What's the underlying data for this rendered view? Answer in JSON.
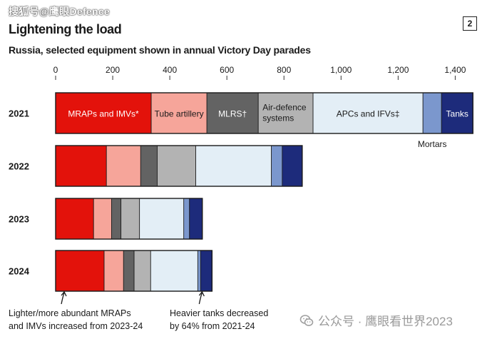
{
  "header": {
    "source_watermark": "搜狐号@鹰眼Defence",
    "title": "Lightening the load",
    "subtitle": "Russia, selected equipment shown in annual Victory Day parades",
    "figure_number": "2"
  },
  "footer": {
    "watermark": "公众号 · 鹰眼看世界2023"
  },
  "chart_data": {
    "type": "bar",
    "orientation": "horizontal",
    "stacked": true,
    "categories": [
      "2021",
      "2022",
      "2023",
      "2024"
    ],
    "xlim": [
      0,
      1450
    ],
    "xticks": [
      0,
      200,
      400,
      600,
      800,
      1000,
      1200,
      1400
    ],
    "xtick_labels": [
      "0",
      "200",
      "400",
      "600",
      "800",
      "1,000",
      "1,200",
      "1,400"
    ],
    "grid": false,
    "series": [
      {
        "name": "MRAPs and IMVs*",
        "color": "#e3120b",
        "values": [
          335,
          178,
          133,
          170
        ]
      },
      {
        "name": "Tube artillery",
        "color": "#f6a59a",
        "values": [
          195,
          120,
          63,
          68
        ]
      },
      {
        "name": "MLRS†",
        "color": "#636363",
        "values": [
          180,
          58,
          33,
          37
        ]
      },
      {
        "name": "Air-defence systems",
        "color": "#b3b3b3",
        "values": [
          192,
          135,
          65,
          58
        ]
      },
      {
        "name": "APCs and IFVs‡",
        "color": "#e3eef6",
        "values": [
          385,
          265,
          155,
          165
        ]
      },
      {
        "name": "Mortars",
        "color": "#7b97cd",
        "values": [
          65,
          38,
          20,
          10
        ]
      },
      {
        "name": "Tanks",
        "color": "#1d2b7b",
        "values": [
          110,
          70,
          45,
          40
        ]
      }
    ],
    "series_labels_on_2021": [
      {
        "series": 0,
        "text": "MRAPs and IMVs*",
        "text_color": "#ffffff"
      },
      {
        "series": 1,
        "text": "Tube artillery",
        "text_color": "#1a1a1a"
      },
      {
        "series": 2,
        "text": "MLRS†",
        "text_color": "#ffffff"
      },
      {
        "series": 3,
        "lines": [
          "Air-defence",
          "systems"
        ],
        "text_color": "#1a1a1a"
      },
      {
        "series": 4,
        "text": "APCs and IFVs‡",
        "text_color": "#1a1a1a"
      },
      {
        "series": 6,
        "text": "Tanks",
        "text_color": "#ffffff"
      }
    ],
    "external_label": {
      "series": 5,
      "text": "Mortars"
    },
    "annotations": [
      {
        "category": "2024",
        "series": 0,
        "lines": [
          "Lighter/more abundant MRAPs",
          "and IMVs increased from 2023-24"
        ]
      },
      {
        "category": "2024",
        "series": 6,
        "lines": [
          "Heavier tanks decreased",
          "by 64% from 2021-24"
        ]
      }
    ]
  }
}
